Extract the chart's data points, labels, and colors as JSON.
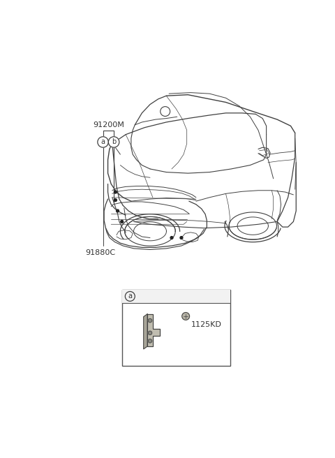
{
  "bg_color": "#ffffff",
  "line_color": "#404040",
  "label_color": "#333333",
  "figure_size": [
    4.8,
    6.56
  ],
  "dpi": 100,
  "label_91200M": "91200M",
  "label_91880C": "91880C",
  "label_1125KD": "1125KD",
  "label_a": "a",
  "label_b": "b"
}
